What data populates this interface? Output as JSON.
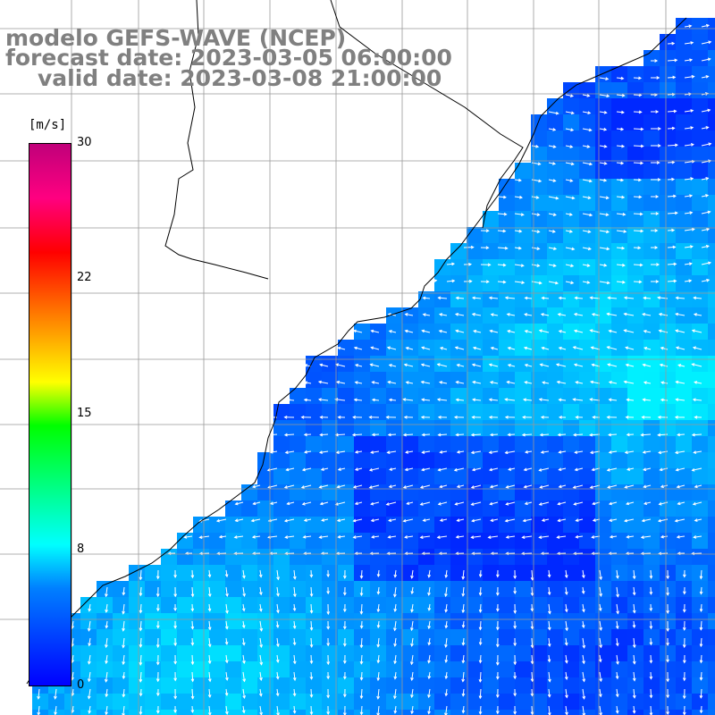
{
  "title": {
    "line1": "modelo GEFS-WAVE (NCEP)",
    "line2": "forecast date: 2023-03-05 06:00:00",
    "line3": "valid date: 2023-03-08 21:00:00"
  },
  "colorbar": {
    "unit": "[m/s]",
    "ticks": [
      "30",
      "22",
      "15",
      "8",
      "0"
    ],
    "min": 0,
    "max": 30,
    "colors": [
      "#0000ff",
      "#0080ff",
      "#00ffff",
      "#00ff00",
      "#ffff00",
      "#ff8000",
      "#ff0000",
      "#c0007a"
    ]
  },
  "map": {
    "land_color": "#ffffff",
    "grid_color": "#999999",
    "coast_color": "#000000",
    "arrow_color": "#ffffff"
  }
}
